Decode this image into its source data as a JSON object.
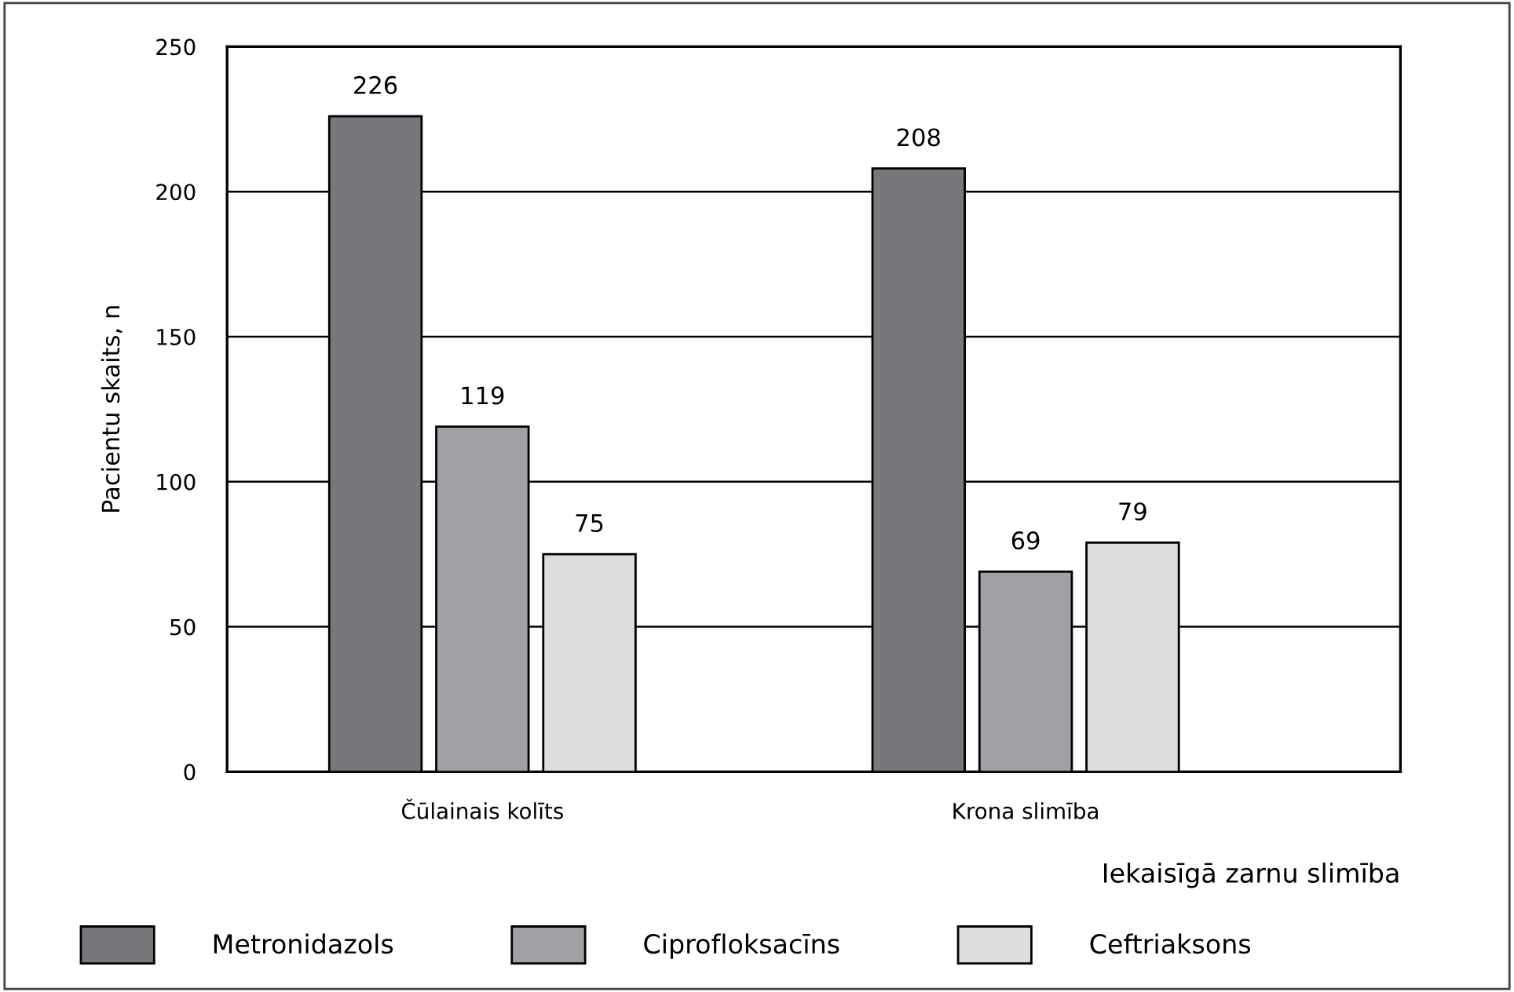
{
  "chart_data": {
    "type": "bar",
    "xlabel": "Iekaisīgā zarnu slimība",
    "ylabel": "Pacientu skaits, n",
    "categories": [
      "Čūlainais kolīts",
      "Krona slimība"
    ],
    "series": [
      {
        "name": "Metronidazols",
        "color": "#77787b",
        "values": [
          226,
          208
        ]
      },
      {
        "name": "Ciprofloksacīns",
        "color": "#a0a1a4",
        "values": [
          119,
          69
        ]
      },
      {
        "name": "Ceftriaksons",
        "color": "#dcdddf",
        "values": [
          75,
          79
        ]
      }
    ],
    "ylim": [
      0,
      250
    ],
    "yticks": [
      0,
      50,
      100,
      150,
      200,
      250
    ],
    "grid": "y",
    "legend": "bottom",
    "data_labels": true
  }
}
